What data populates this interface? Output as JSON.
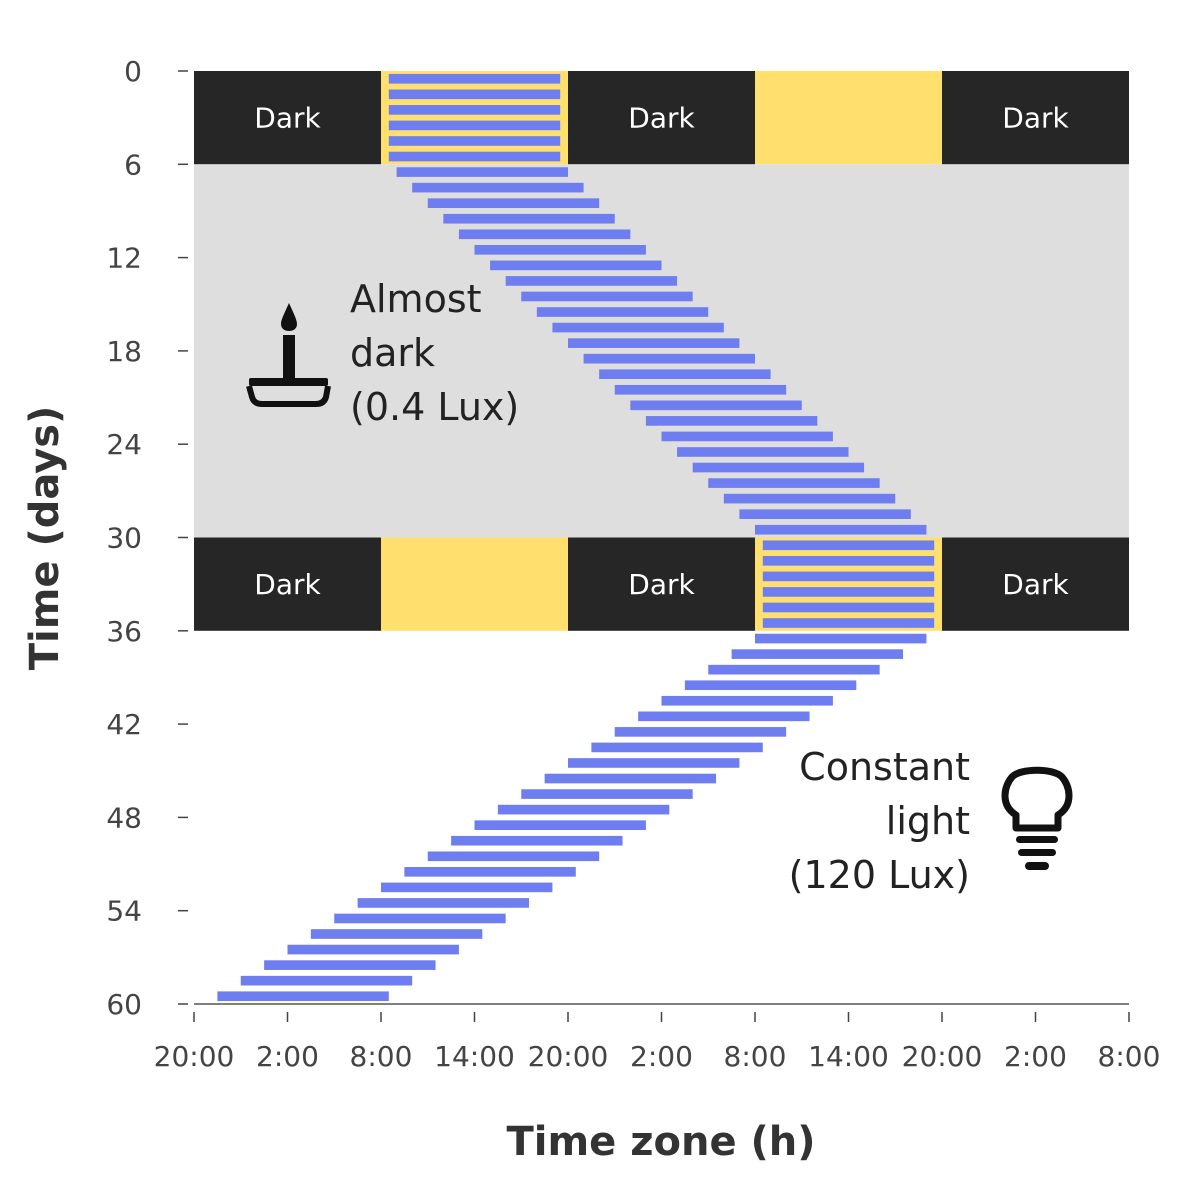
{
  "chart_data": {
    "type": "bar",
    "subtype": "actogram",
    "xlabel": "Time zone (h)",
    "ylabel": "Time (days)",
    "x_tick_labels": [
      "20:00",
      "2:00",
      "8:00",
      "14:00",
      "20:00",
      "2:00",
      "8:00",
      "14:00",
      "20:00",
      "2:00",
      "8:00"
    ],
    "x_range_hours": [
      0,
      60
    ],
    "y_ticks": [
      0,
      6,
      12,
      18,
      24,
      30,
      36,
      42,
      48,
      54,
      60
    ],
    "y_range_days": [
      0,
      60
    ],
    "y_inverted": true,
    "phases": [
      {
        "label": "Dark",
        "days": [
          0,
          6
        ],
        "type": "light-dark cycle"
      },
      {
        "label": "Almost dark (0.4 Lux)",
        "days": [
          6,
          30
        ],
        "type": "constant dim"
      },
      {
        "label": "Dark",
        "days": [
          30,
          36
        ],
        "type": "light-dark cycle"
      },
      {
        "label": "Constant light (120 Lux)",
        "days": [
          36,
          60
        ],
        "type": "constant light"
      }
    ],
    "light_dark_band": {
      "dark_label": "Dark",
      "light_windows_hours": [
        [
          12,
          24
        ],
        [
          36,
          48
        ]
      ],
      "dark_windows_hours": [
        [
          0,
          12
        ],
        [
          24,
          36
        ],
        [
          48,
          60
        ]
      ]
    },
    "activity_series": {
      "name": "",
      "onsets_hours": [
        12.5,
        12.5,
        12.5,
        12.5,
        12.5,
        12.5,
        13.0,
        14.0,
        15.0,
        16.0,
        17.0,
        18.0,
        19.0,
        20.0,
        21.0,
        22.0,
        23.0,
        24.0,
        25.0,
        26.0,
        27.0,
        28.0,
        29.0,
        30.0,
        31.0,
        32.0,
        33.0,
        34.0,
        35.0,
        36.0,
        36.5,
        36.5,
        36.5,
        36.5,
        36.5,
        36.5,
        36.0,
        34.5,
        33.0,
        31.5,
        30.0,
        28.5,
        27.0,
        25.5,
        24.0,
        22.5,
        21.0,
        19.5,
        18.0,
        16.5,
        15.0,
        13.5,
        12.0,
        10.5,
        9.0,
        7.5,
        6.0,
        4.5,
        3.0,
        1.5
      ],
      "duration_hours": 11
    },
    "annotations": [
      {
        "text_lines": [
          "Almost",
          "dark",
          "(0.4 Lux)"
        ],
        "icon": "candle-icon"
      },
      {
        "text_lines": [
          "Constant",
          "light",
          "(120 Lux)"
        ],
        "icon": "lightbulb-icon"
      }
    ],
    "colors": {
      "dark": "#262626",
      "light": "#ffe06e",
      "dim": "#dedede",
      "activity": "#6e7ef0",
      "tick": "#444444"
    }
  }
}
